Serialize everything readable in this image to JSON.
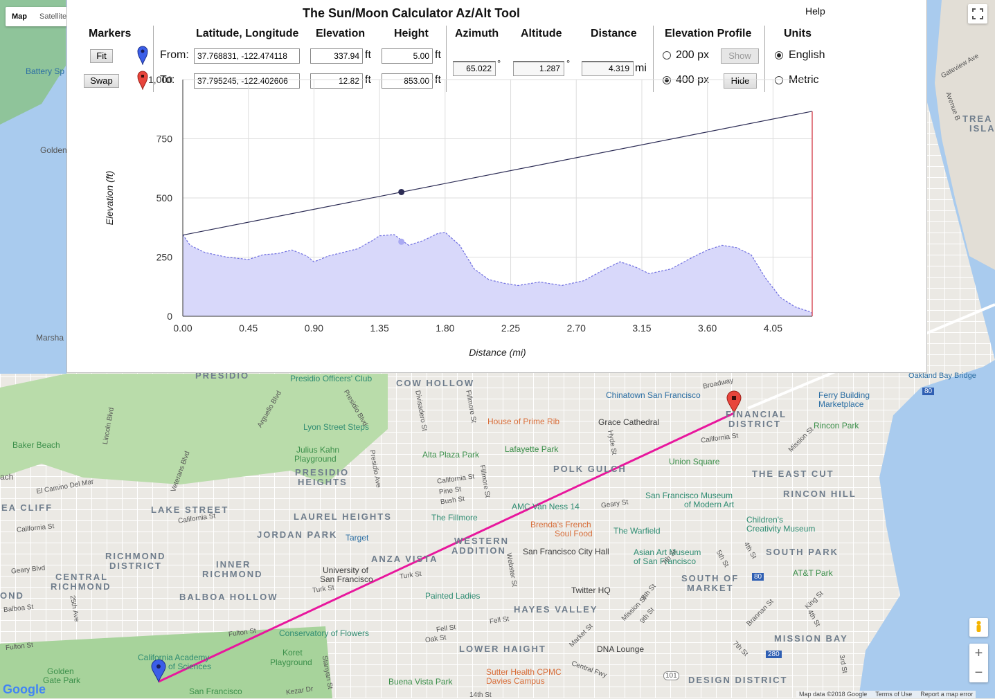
{
  "map": {
    "type_buttons": [
      "Map",
      "Satellite"
    ],
    "active_type": "Map",
    "zoom_in": "+",
    "zoom_out": "−",
    "logo": "Google",
    "attribution": [
      "Map data ©2018 Google",
      "Terms of Use",
      "Report a map error"
    ],
    "route_color": "#e8179d",
    "labels": {
      "cow_hollow": "COW HOLLOW",
      "financial_district_1": "FINANCIAL",
      "financial_district_2": "DISTRICT",
      "polk_gulch": "POLK GULCH",
      "presidio_heights_1": "PRESIDIO",
      "presidio_heights_2": "HEIGHTS",
      "lake_street": "LAKE STREET",
      "laurel_heights": "LAUREL HEIGHTS",
      "jordan_park": "JORDAN PARK",
      "richmond_district_1": "RICHMOND",
      "richmond_district_2": "DISTRICT",
      "inner_richmond_1": "INNER",
      "inner_richmond_2": "RICHMOND",
      "central_richmond_1": "CENTRAL",
      "central_richmond_2": "RICHMOND",
      "sea_cliff": "EA CLIFF",
      "ond": "OND",
      "anza_vista": "ANZA VISTA",
      "western_addition_1": "WESTERN",
      "western_addition_2": "ADDITION",
      "balboa_hollow": "BALBOA HOLLOW",
      "hayes_valley": "HAYES VALLEY",
      "lower_haight": "LOWER HAIGHT",
      "the_east_cut": "THE EAST CUT",
      "rincon_hill": "RINCON HILL",
      "south_park": "SOUTH PARK",
      "south_of_market_1": "SOUTH OF",
      "south_of_market_2": "MARKET",
      "mission_bay": "MISSION BAY",
      "design_district": "DESIGN DISTRICT",
      "treasure_1": "TREA",
      "treasure_2": "ISLA",
      "presidio": "PRESIDIO",
      "presidio_officers_club": "Presidio Officers' Club",
      "chinatown": "Chinatown San Francisco",
      "ferry_building_1": "Ferry Building",
      "ferry_building_2": "Marketplace",
      "rincon_park": "Rincon Park",
      "house_of_prime_rib": "House of Prime Rib",
      "grace_cathedral": "Grace Cathedral",
      "lyon_street_steps": "Lyon Street Steps",
      "baker_beach": "Baker Beach",
      "julius_kahn_1": "Julius Kahn",
      "julius_kahn_2": "Playground",
      "alta_plaza": "Alta Plaza Park",
      "lafayette_park": "Lafayette Park",
      "union_square": "Union Square",
      "sfmoma_1": "San Francisco Museum",
      "sfmoma_2": "of Modern Art",
      "childrens_1": "Children's",
      "childrens_2": "Creativity Museum",
      "amc_van_ness": "AMC Van Ness 14",
      "the_fillmore": "The Fillmore",
      "target": "Target",
      "brendas_1": "Brenda's French",
      "brendas_2": "Soul Food",
      "the_warfield": "The Warfield",
      "sf_city_hall": "San Francisco City Hall",
      "asian_art_1": "Asian Art Museum",
      "asian_art_2": "of San Francisco",
      "usf_1": "University of",
      "usf_2": "San Francisco",
      "painted_ladies": "Painted Ladies",
      "twitter_hq": "Twitter HQ",
      "att_park": "AT&T Park",
      "conservatory": "Conservatory of Flowers",
      "cal_academy_1": "California Academy",
      "cal_academy_2": "of Sciences",
      "koret_1": "Koret",
      "koret_2": "Playground",
      "dna_lounge": "DNA Lounge",
      "sutter_1": "Sutter Health CPMC",
      "sutter_2": "Davies Campus",
      "buena_vista": "Buena Vista Park",
      "golden_gate_park_1": "Golden",
      "golden_gate_park_2": "Gate Park",
      "san_francisco": "San Francisco",
      "battery": "Battery Sp",
      "golden": "Golden",
      "marsha": "Marsha",
      "ach": "ach",
      "oakland_bay_bridge": "Oakland Bay Bridge",
      "broadway": "Broadway",
      "california_st_1": "California St",
      "california_st_2": "California St",
      "california_st_3": "California St",
      "california_st_4": "California St",
      "pine_st": "Pine St",
      "bush_st": "Bush St",
      "geary_st": "Geary St",
      "geary_blvd": "Geary Blvd",
      "turk_st_1": "Turk St",
      "turk_st_2": "Turk St",
      "fulton_st_1": "Fulton St",
      "fulton_st_2": "Fulton St",
      "fell_st_1": "Fell St",
      "fell_st_2": "Fell St",
      "oak_st": "Oak St",
      "balboa_st": "Balboa St",
      "el_camino": "El Camino Del Mar",
      "mission_st_1": "Mission St",
      "mission_st_2": "Mission St",
      "market_st": "Market St",
      "central_fwy": "Central Fwy",
      "king_st": "King St",
      "brannan_st": "Brannan St",
      "kezar_dr": "Kezar Dr",
      "14th_st": "14th St",
      "gateview": "Gateview Ave",
      "avenue_b": "Avenue B",
      "lincoln_blvd": "Lincoln Blvd",
      "arguello_blvd": "Arguello Blvd",
      "presidio_blvd": "Presidio Blvd",
      "veterans_blvd": "Veterans Blvd",
      "divisadero": "Divisadero St",
      "fillmore_st_1": "Fillmore St",
      "fillmore_st_2": "Fillmore St",
      "presidio_ave": "Presidio Ave",
      "webster_st": "Webster St",
      "hyde_st": "Hyde St",
      "25th_ave": "25th Ave",
      "stanyan_st": "Stanyan St",
      "7th_st_1": "7th St",
      "7th_st_2": "7th St",
      "8th_st": "8th St",
      "9th_st": "9th St",
      "4th_st_1": "4th St",
      "4th_st_2": "4th St",
      "5th_st": "5th St",
      "3rd_st": "3rd St",
      "101": "101",
      "80_1": "80",
      "80_2": "80",
      "280": "280"
    }
  },
  "panel": {
    "title": "The Sun/Moon Calculator Az/Alt Tool",
    "help": "Help",
    "markers": {
      "heading": "Markers",
      "fit_button": "Fit",
      "swap_button": "Swap"
    },
    "from": {
      "label": "From:",
      "latlng": "37.768831, -122.474118",
      "elevation": "337.94",
      "height": "5.00"
    },
    "to": {
      "label": "To:",
      "latlng": "37.795245, -122.402606",
      "elevation": "12.82",
      "height": "853.00"
    },
    "headings": {
      "latlng": "Latitude, Longitude",
      "elevation": "Elevation",
      "height": "Height",
      "azimuth": "Azimuth",
      "altitude": "Altitude",
      "distance": "Distance",
      "profile": "Elevation Profile",
      "units": "Units"
    },
    "unit_ft": "ft",
    "unit_deg": "°",
    "unit_mi": "mi",
    "azimuth": "65.022",
    "altitude": "1.287",
    "distance": "4.319",
    "profile": {
      "option_200": "200 px",
      "option_400": "400 px",
      "selected": "400 px",
      "show_button": "Show",
      "hide_button": "Hide"
    },
    "units": {
      "english": "English",
      "metric": "Metric",
      "selected": "English"
    }
  },
  "chart_data": {
    "type": "area",
    "xlabel": "Distance (mi)",
    "ylabel": "Elevation (ft)",
    "xlim": [
      0,
      4.319
    ],
    "ylim": [
      0,
      1000
    ],
    "x_ticks": [
      "0.00",
      "0.45",
      "0.90",
      "1.35",
      "1.80",
      "2.25",
      "2.70",
      "3.15",
      "3.60",
      "4.05"
    ],
    "y_ticks": [
      "0",
      "250",
      "500",
      "750",
      "1,000"
    ],
    "grid": true,
    "terrain_color": "#6f6fe0",
    "terrain_fill": "#d8d8fa",
    "sightline_color": "#2c2c55",
    "endpoint_line_color": "#d9535f",
    "series": [
      {
        "type": "area",
        "x": [
          0,
          0.05,
          0.15,
          0.3,
          0.45,
          0.55,
          0.65,
          0.75,
          0.85,
          0.9,
          1.0,
          1.1,
          1.2,
          1.3,
          1.35,
          1.45,
          1.55,
          1.65,
          1.75,
          1.8,
          1.9,
          2.0,
          2.1,
          2.2,
          2.3,
          2.45,
          2.6,
          2.75,
          2.9,
          3.0,
          3.1,
          3.2,
          3.35,
          3.5,
          3.6,
          3.7,
          3.8,
          3.9,
          4.0,
          4.1,
          4.2,
          4.3,
          4.319
        ],
        "y": [
          345,
          300,
          270,
          250,
          240,
          260,
          265,
          280,
          255,
          230,
          255,
          270,
          285,
          320,
          340,
          345,
          300,
          320,
          350,
          355,
          300,
          200,
          155,
          140,
          130,
          145,
          130,
          150,
          200,
          230,
          210,
          180,
          200,
          250,
          280,
          300,
          290,
          260,
          160,
          80,
          40,
          20,
          13
        ]
      },
      {
        "type": "line",
        "x": [
          0,
          4.319
        ],
        "y": [
          343,
          866
        ]
      }
    ],
    "markers": [
      {
        "x": 1.5,
        "y": 525,
        "series": "sightline"
      },
      {
        "x": 1.5,
        "y": 315,
        "series": "terrain"
      }
    ]
  }
}
